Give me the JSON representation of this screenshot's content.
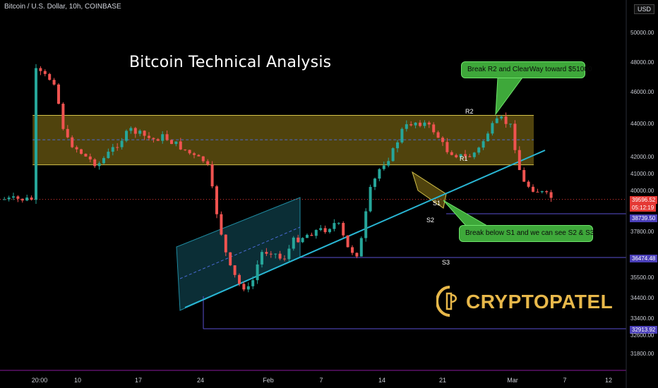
{
  "header": {
    "symbol_line": "Bitcoin / U.S. Dollar, 10h, COINBASE",
    "currency_button": "USD"
  },
  "title": "Bitcoin Technical Analysis",
  "callouts": [
    {
      "text": "Break R2 and ClearWay toward $51000"
    },
    {
      "text": "Break below S1 and we can see S2 & S3"
    }
  ],
  "levels": {
    "R2": "R2",
    "R1": "R1",
    "S1": "S1",
    "S2": "S2",
    "S3": "S3"
  },
  "price_badges": {
    "current_price": "39596.52",
    "countdown": "05:12:19",
    "s2_price": "38739.50",
    "s3_price": "36474.48",
    "low_price": "32913.92"
  },
  "logo": {
    "text": "CRYPTOPATEL",
    "color": "#e8b84a"
  },
  "colors": {
    "background": "#000000",
    "bull": "#26a69a",
    "bear": "#ef5350",
    "zone_fill": "#6b5a12",
    "zone_border": "#d4c24a",
    "trendline": "#29b6d4",
    "channel_fill": "#0e3a44",
    "level_line": "#5a4fcf",
    "callout": "#3ea83a"
  },
  "chart_data": {
    "type": "candlestick",
    "y_axis_ticks": [
      "50000.00",
      "48000.00",
      "46000.00",
      "44000.00",
      "42000.00",
      "41000.00",
      "40000.00",
      "37800.00",
      "35500.00",
      "34400.00",
      "33400.00",
      "32600.00",
      "31800.00"
    ],
    "x_axis_ticks": [
      "20:00",
      "10",
      "17",
      "24",
      "Feb",
      "7",
      "14",
      "21",
      "Mar",
      "7",
      "12"
    ],
    "ylim": [
      31500,
      51500
    ],
    "resistance_zone": {
      "low": 41600,
      "high": 44600,
      "mid": 43100
    },
    "levels": {
      "S2": 38739.5,
      "S3": 36474.48,
      "low": 32913.92,
      "current": 39596.52
    },
    "path": [
      [
        "2022-01-04",
        47600
      ],
      [
        "2022-01-06",
        46800
      ],
      [
        "2022-01-07",
        43200
      ],
      [
        "2022-01-09",
        42000
      ],
      [
        "2022-01-10",
        41600
      ],
      [
        "2022-01-12",
        43000
      ],
      [
        "2022-01-13",
        43700
      ],
      [
        "2022-01-15",
        43100
      ],
      [
        "2022-01-16",
        43300
      ],
      [
        "2022-01-18",
        42500
      ],
      [
        "2022-01-19",
        42000
      ],
      [
        "2022-01-20",
        41800
      ],
      [
        "2022-01-21",
        38700
      ],
      [
        "2022-01-22",
        36200
      ],
      [
        "2022-01-23",
        35200
      ],
      [
        "2022-01-24",
        34900
      ],
      [
        "2022-01-25",
        36800
      ],
      [
        "2022-01-26",
        36900
      ],
      [
        "2022-01-27",
        36400
      ],
      [
        "2022-01-28",
        37400
      ],
      [
        "2022-01-30",
        37900
      ],
      [
        "2022-01-31",
        38000
      ],
      [
        "2022-02-01",
        38400
      ],
      [
        "2022-02-02",
        37000
      ],
      [
        "2022-02-03",
        36700
      ],
      [
        "2022-02-04",
        40000
      ],
      [
        "2022-02-05",
        41500
      ],
      [
        "2022-02-06",
        42200
      ],
      [
        "2022-02-07",
        43700
      ],
      [
        "2022-02-08",
        44200
      ],
      [
        "2022-02-09",
        44100
      ],
      [
        "2022-02-10",
        43600
      ],
      [
        "2022-02-11",
        42500
      ],
      [
        "2022-02-12",
        42200
      ],
      [
        "2022-02-13",
        42000
      ],
      [
        "2022-02-14",
        42500
      ],
      [
        "2022-02-15",
        43700
      ],
      [
        "2022-02-16",
        44400
      ],
      [
        "2022-02-17",
        43900
      ],
      [
        "2022-02-18",
        40600
      ],
      [
        "2022-02-19",
        40200
      ],
      [
        "2022-02-20",
        39900
      ],
      [
        "2022-02-21",
        39596.52
      ]
    ]
  }
}
